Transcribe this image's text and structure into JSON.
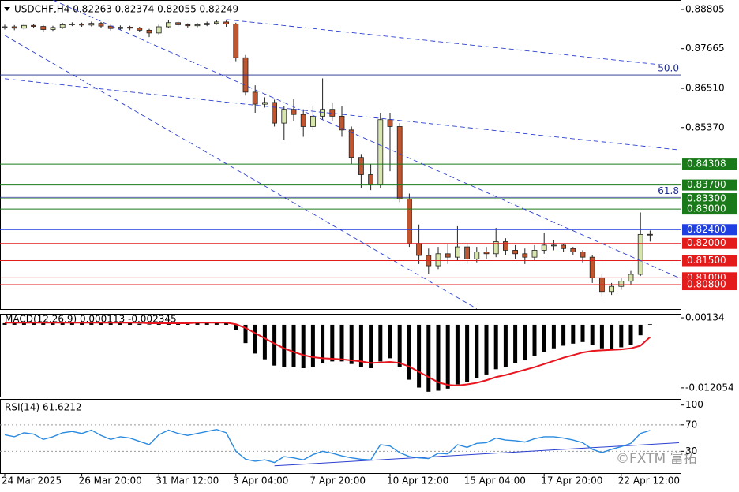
{
  "chart_data": [
    {
      "type": "candlestick",
      "title": "USDCHF,H4  0.82263 0.82374 0.82055 0.82249",
      "categories": [
        "24 Mar 2025",
        null,
        null,
        null,
        null,
        null,
        null,
        null,
        "26 Mar 20:00",
        null,
        null,
        null,
        null,
        null,
        null,
        null,
        "31 Mar 12:00",
        null,
        null,
        null,
        null,
        null,
        null,
        null,
        "3 Apr 04:00",
        null,
        null,
        null,
        null,
        null,
        null,
        null,
        "7 Apr 20:00",
        null,
        null,
        null,
        null,
        null,
        null,
        null,
        "10 Apr 12:00",
        null,
        null,
        null,
        null,
        null,
        null,
        null,
        "15 Apr 04:00",
        null,
        null,
        null,
        null,
        null,
        null,
        null,
        "17 Apr 20:00",
        null,
        null,
        null,
        null,
        null,
        null,
        null,
        "22 Apr 12:00",
        null,
        null,
        null
      ],
      "open": [
        0.8828,
        0.883,
        0.8826,
        0.8834,
        0.8831,
        0.8822,
        0.8828,
        0.8836,
        0.8838,
        0.8835,
        0.884,
        0.8832,
        0.8825,
        0.8829,
        0.8826,
        0.882,
        0.8812,
        0.883,
        0.8842,
        0.8836,
        0.8833,
        0.8836,
        0.884,
        0.8844,
        0.8838,
        0.874,
        0.864,
        0.8605,
        0.861,
        0.855,
        0.859,
        0.8575,
        0.854,
        0.857,
        0.859,
        0.857,
        0.853,
        0.845,
        0.84,
        0.837,
        0.856,
        0.854,
        0.833,
        0.82,
        0.8165,
        0.8135,
        0.817,
        0.816,
        0.819,
        0.8155,
        0.8175,
        0.817,
        0.8205,
        0.818,
        0.817,
        0.816,
        0.818,
        0.8195,
        0.8195,
        0.8185,
        0.8175,
        0.816,
        0.81,
        0.806,
        0.8075,
        0.809,
        0.811,
        0.82263
      ],
      "high": [
        0.8836,
        0.8835,
        0.884,
        0.8839,
        0.8835,
        0.8833,
        0.8841,
        0.8843,
        0.8842,
        0.8845,
        0.8844,
        0.8836,
        0.8834,
        0.8833,
        0.883,
        0.8824,
        0.8836,
        0.885,
        0.8846,
        0.884,
        0.8841,
        0.8845,
        0.885,
        0.8848,
        0.8842,
        0.8748,
        0.866,
        0.8625,
        0.8618,
        0.86,
        0.862,
        0.859,
        0.86,
        0.868,
        0.861,
        0.86,
        0.854,
        0.846,
        0.843,
        0.858,
        0.858,
        0.855,
        0.8345,
        0.8255,
        0.8185,
        0.819,
        0.82,
        0.825,
        0.82,
        0.819,
        0.819,
        0.8245,
        0.8215,
        0.8195,
        0.8185,
        0.8195,
        0.823,
        0.821,
        0.82,
        0.819,
        0.818,
        0.8165,
        0.811,
        0.8085,
        0.81,
        0.812,
        0.829,
        0.82374
      ],
      "low": [
        0.8822,
        0.882,
        0.8821,
        0.8826,
        0.8816,
        0.8818,
        0.8824,
        0.8832,
        0.883,
        0.8831,
        0.8827,
        0.8819,
        0.8821,
        0.882,
        0.8814,
        0.88,
        0.8808,
        0.8826,
        0.8831,
        0.8828,
        0.8829,
        0.8832,
        0.8836,
        0.883,
        0.873,
        0.863,
        0.858,
        0.8595,
        0.854,
        0.85,
        0.8555,
        0.851,
        0.853,
        0.856,
        0.8555,
        0.851,
        0.843,
        0.836,
        0.8355,
        0.836,
        0.841,
        0.832,
        0.819,
        0.814,
        0.811,
        0.8125,
        0.814,
        0.815,
        0.814,
        0.8145,
        0.8155,
        0.816,
        0.8165,
        0.8155,
        0.814,
        0.815,
        0.817,
        0.818,
        0.8175,
        0.8165,
        0.8145,
        0.8085,
        0.8045,
        0.805,
        0.8065,
        0.808,
        0.8105,
        0.82055
      ],
      "close": [
        0.883,
        0.8826,
        0.8834,
        0.8831,
        0.8822,
        0.8828,
        0.8836,
        0.8838,
        0.8835,
        0.884,
        0.8832,
        0.8825,
        0.8829,
        0.8826,
        0.882,
        0.8812,
        0.883,
        0.8842,
        0.8836,
        0.8833,
        0.8836,
        0.884,
        0.8844,
        0.8838,
        0.874,
        0.864,
        0.8605,
        0.861,
        0.855,
        0.859,
        0.8575,
        0.854,
        0.857,
        0.859,
        0.857,
        0.853,
        0.845,
        0.84,
        0.837,
        0.856,
        0.854,
        0.833,
        0.82,
        0.8165,
        0.8135,
        0.817,
        0.816,
        0.819,
        0.8155,
        0.8175,
        0.817,
        0.8205,
        0.818,
        0.817,
        0.816,
        0.818,
        0.8195,
        0.8195,
        0.8185,
        0.8175,
        0.816,
        0.81,
        0.806,
        0.8075,
        0.809,
        0.811,
        0.8226,
        0.82249
      ],
      "up_color": "#d6e6ad",
      "down_color": "#c0552f",
      "ylim": [
        0.8009,
        0.8908
      ],
      "yticks": [
        0.88805,
        0.87665,
        {
          "value": 0.8651,
          "label": "0.86510"
        },
        {
          "value": 0.8537,
          "label": "0.85370"
        }
      ],
      "levels": [
        {
          "value": 0.84308,
          "label": "0.84308",
          "color": "#1a7a1a"
        },
        {
          "value": 0.837,
          "label": "0.83700",
          "color": "#1a7a1a"
        },
        {
          "value": 0.833,
          "label": "0.83300",
          "color": "#1a7a1a"
        },
        {
          "value": 0.83,
          "label": "0.83000",
          "color": "#1a7a1a"
        },
        {
          "value": 0.824,
          "label": "0.82400",
          "color": "#1f3fe0"
        },
        {
          "value": 0.82,
          "label": "0.82000",
          "color": "#e41b1b"
        },
        {
          "value": 0.815,
          "label": "0.81500",
          "color": "#e41b1b"
        },
        {
          "value": 0.81,
          "label": "0.81000",
          "color": "#e41b1b"
        },
        {
          "value": 0.808,
          "label": "0.80800",
          "color": "#e41b1b"
        }
      ],
      "fib_levels": [
        {
          "value": 0.869,
          "label": "50.0"
        },
        {
          "value": 0.8334,
          "label": "61.8"
        }
      ],
      "trendlines": [
        {
          "from": [
            0,
            0.8805
          ],
          "to": [
            49,
            0.801
          ]
        },
        {
          "from": [
            5,
            0.8908
          ],
          "to": [
            70,
            0.81
          ]
        },
        {
          "from": [
            0,
            0.8679
          ],
          "to": [
            70,
            0.8472
          ]
        },
        {
          "from": [
            23,
            0.8851
          ],
          "to": [
            68,
            0.872
          ]
        }
      ]
    },
    {
      "type": "macd",
      "title": "MACD(12,26,9) 0.000113 -0.002345",
      "series": [
        {
          "color": "#000000",
          "values": [
            0.0003,
            0.0003,
            0.0004,
            0.0004,
            0.0003,
            0.0003,
            0.0004,
            0.0005,
            0.0005,
            0.0005,
            0.0004,
            0.0003,
            0.0003,
            0.0003,
            0.0002,
            0.0001,
            0.0002,
            0.0003,
            0.0004,
            0.0004,
            0.0004,
            0.0005,
            0.0005,
            0.0005,
            -0.001,
            -0.0035,
            -0.0055,
            -0.0066,
            -0.0078,
            -0.008,
            -0.0081,
            -0.0083,
            -0.008,
            -0.0074,
            -0.007,
            -0.007,
            -0.0075,
            -0.008,
            -0.0083,
            -0.007,
            -0.0064,
            -0.008,
            -0.0105,
            -0.012,
            -0.0128,
            -0.0126,
            -0.0122,
            -0.0114,
            -0.011,
            -0.0102,
            -0.0095,
            -0.0085,
            -0.008,
            -0.0073,
            -0.0068,
            -0.006,
            -0.0052,
            -0.0045,
            -0.004,
            -0.0036,
            -0.0033,
            -0.0038,
            -0.0045,
            -0.0046,
            -0.0043,
            -0.0038,
            -0.002,
            0.000113
          ]
        },
        {
          "color": "#e8141e",
          "values": [
            0.0004,
            0.0004,
            0.0004,
            0.0004,
            0.0004,
            0.0004,
            0.0004,
            0.0004,
            0.0004,
            0.0004,
            0.0004,
            0.0004,
            0.0004,
            0.0004,
            0.0004,
            0.0003,
            0.0003,
            0.0003,
            0.0003,
            0.0003,
            0.0004,
            0.0004,
            0.0004,
            0.0004,
            0.0001,
            -0.0006,
            -0.0016,
            -0.0026,
            -0.0036,
            -0.0045,
            -0.0052,
            -0.0058,
            -0.0062,
            -0.0064,
            -0.0065,
            -0.0066,
            -0.0068,
            -0.007,
            -0.0073,
            -0.0072,
            -0.0071,
            -0.0073,
            -0.008,
            -0.009,
            -0.01,
            -0.011,
            -0.0115,
            -0.0116,
            -0.0114,
            -0.0111,
            -0.0106,
            -0.01,
            -0.0096,
            -0.0091,
            -0.0086,
            -0.0081,
            -0.0075,
            -0.0069,
            -0.0063,
            -0.0058,
            -0.0053,
            -0.005,
            -0.0049,
            -0.0048,
            -0.0047,
            -0.0045,
            -0.004,
            -0.002345
          ]
        }
      ],
      "ylim": [
        -0.01373,
        0.00195
      ],
      "yticks": [
        0.00134,
        -0.012054
      ]
    },
    {
      "type": "line",
      "title": "RSI(14) 61.6212",
      "color": "#2a8ae0",
      "values": [
        55,
        52,
        58,
        56,
        48,
        52,
        58,
        60,
        57,
        62,
        54,
        48,
        52,
        50,
        45,
        40,
        55,
        62,
        57,
        54,
        57,
        60,
        63,
        58,
        30,
        18,
        15,
        17,
        13,
        22,
        20,
        17,
        25,
        30,
        27,
        23,
        20,
        18,
        17,
        40,
        38,
        28,
        22,
        20,
        19,
        27,
        26,
        40,
        36,
        42,
        43,
        50,
        47,
        46,
        44,
        49,
        52,
        52,
        50,
        47,
        43,
        33,
        28,
        33,
        37,
        42,
        57,
        61.6212
      ],
      "ylim": [
        -3,
        108
      ],
      "yticks": [
        100,
        70,
        30
      ],
      "guides": [
        70,
        30
      ],
      "trendlines": [
        {
          "from": [
            28,
            8
          ],
          "to": [
            70,
            43
          ]
        }
      ]
    }
  ],
  "watermark": "©FXTM 富拓"
}
